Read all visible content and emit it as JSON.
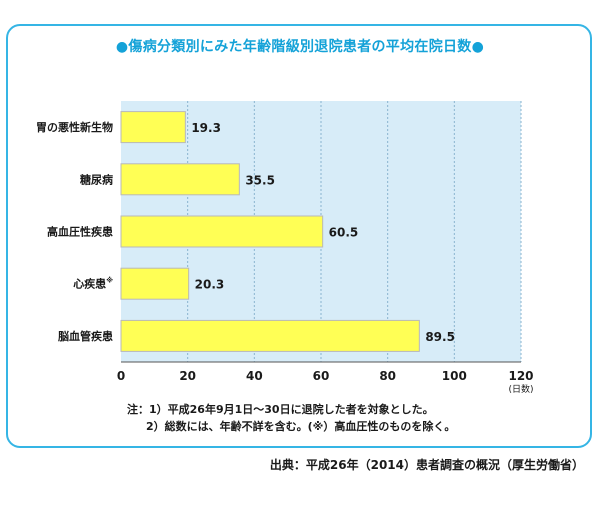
{
  "title": "●傷病分類別にみた年齢階級別退院患者の平均在院日数●",
  "chart_data": {
    "type": "bar",
    "orientation": "horizontal",
    "categories": [
      "胃の悪性新生物",
      "糖尿病",
      "高血圧性疾患",
      "心疾患",
      "脳血管疾患"
    ],
    "category_notes": [
      "",
      "",
      "",
      "※",
      ""
    ],
    "values": [
      19.3,
      35.5,
      60.5,
      20.3,
      89.5
    ],
    "value_labels": [
      "19.3",
      "35.5",
      "60.5",
      "20.3",
      "89.5"
    ],
    "xlim": [
      0,
      120
    ],
    "ticks": [
      0,
      20,
      40,
      60,
      80,
      100,
      120
    ],
    "xunit": "(日数)",
    "grid": true,
    "colors": {
      "bar": "#ffff55",
      "bar_border": "#b8b8b8",
      "plot_bg": "#d7ecf8",
      "grid": "#8ab4cf"
    }
  },
  "notes": {
    "line1": "注：1）平成26年9月1日～30日に退院した者を対象とした。",
    "line2": "2）総数には、年齢不詳を含む。(※）高血圧性のものを除く。"
  },
  "source": "出典：平成26年（2014）患者調査の概況（厚生労働省）"
}
